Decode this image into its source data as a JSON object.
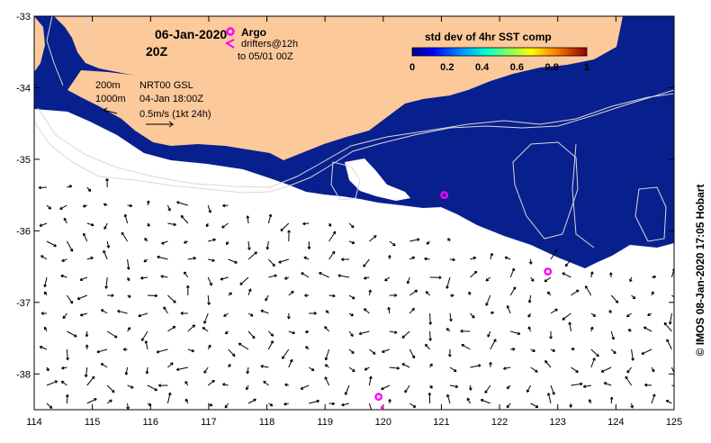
{
  "header": {
    "date": "06-Jan-2020",
    "time": "20Z"
  },
  "legend_argo": {
    "title": "Argo",
    "drifters_line1": "drifters@12h",
    "drifters_line2": "to 05/01 00Z",
    "argo_color": "#ff00ff",
    "drifter_color": "#ff00ff"
  },
  "contours": {
    "line1": "200m",
    "line2": "1000m"
  },
  "product": {
    "name": "NRT00 GSL",
    "datetime": "04-Jan 18:00Z",
    "vector_scale": "0.5m/s (1kt 24h)"
  },
  "colorbar": {
    "title": "std dev of 4hr SST comp",
    "ticks": [
      "0",
      "0.2",
      "0.4",
      "0.6",
      "0.8",
      "1"
    ],
    "range": [
      0,
      1
    ]
  },
  "axes": {
    "x_ticks": [
      "114",
      "115",
      "116",
      "117",
      "118",
      "119",
      "120",
      "121",
      "122",
      "123",
      "124",
      "125"
    ],
    "y_ticks": [
      "-33",
      "-34",
      "-35",
      "-36",
      "-37",
      "-38"
    ],
    "x_range": [
      114,
      125
    ],
    "y_range": [
      -38.5,
      -33
    ]
  },
  "credit": "© IMOS 08-Jan-2020 17:05 Hobart",
  "colors": {
    "land": "#fcc99b",
    "ocean_sst": "#08208e",
    "contour": "#d8d8d8",
    "vector": "#000000",
    "frame": "#000000"
  },
  "argo_floats": [
    {
      "lon": 121.05,
      "lat": -35.5
    },
    {
      "lon": 122.83,
      "lat": -36.57
    },
    {
      "lon": 119.92,
      "lat": -38.32
    }
  ]
}
